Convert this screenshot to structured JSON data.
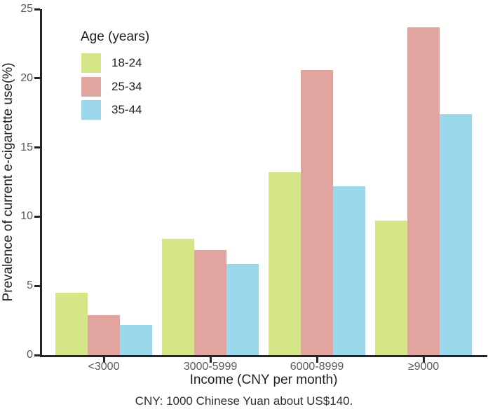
{
  "figure": {
    "background": "#ffffff",
    "footnote": "CNY: 1000 Chinese Yuan about US$140."
  },
  "chart_data": {
    "type": "bar",
    "title": "",
    "xlabel": "Income (CNY per month)",
    "ylabel": "Prevalence of current e-cigarette use(%)",
    "categories": [
      "<3000",
      "3000-5999",
      "6000-8999",
      "≥9000"
    ],
    "series": [
      {
        "name": "18-24",
        "color": "#d4e685",
        "values": [
          4.5,
          8.4,
          13.2,
          9.7
        ]
      },
      {
        "name": "25-34",
        "color": "#e2a49f",
        "values": [
          2.9,
          7.6,
          20.6,
          23.7
        ]
      },
      {
        "name": "35-44",
        "color": "#9cd8ec",
        "values": [
          2.2,
          6.6,
          12.2,
          17.4
        ]
      }
    ],
    "ylim": [
      0,
      25
    ],
    "yticks": [
      0,
      5,
      10,
      15,
      20,
      25
    ],
    "grid": false,
    "legend": {
      "title": "Age (years)",
      "position": "top-left-inside"
    },
    "axis_color": "#262626",
    "tick_label_color": "#595959"
  }
}
